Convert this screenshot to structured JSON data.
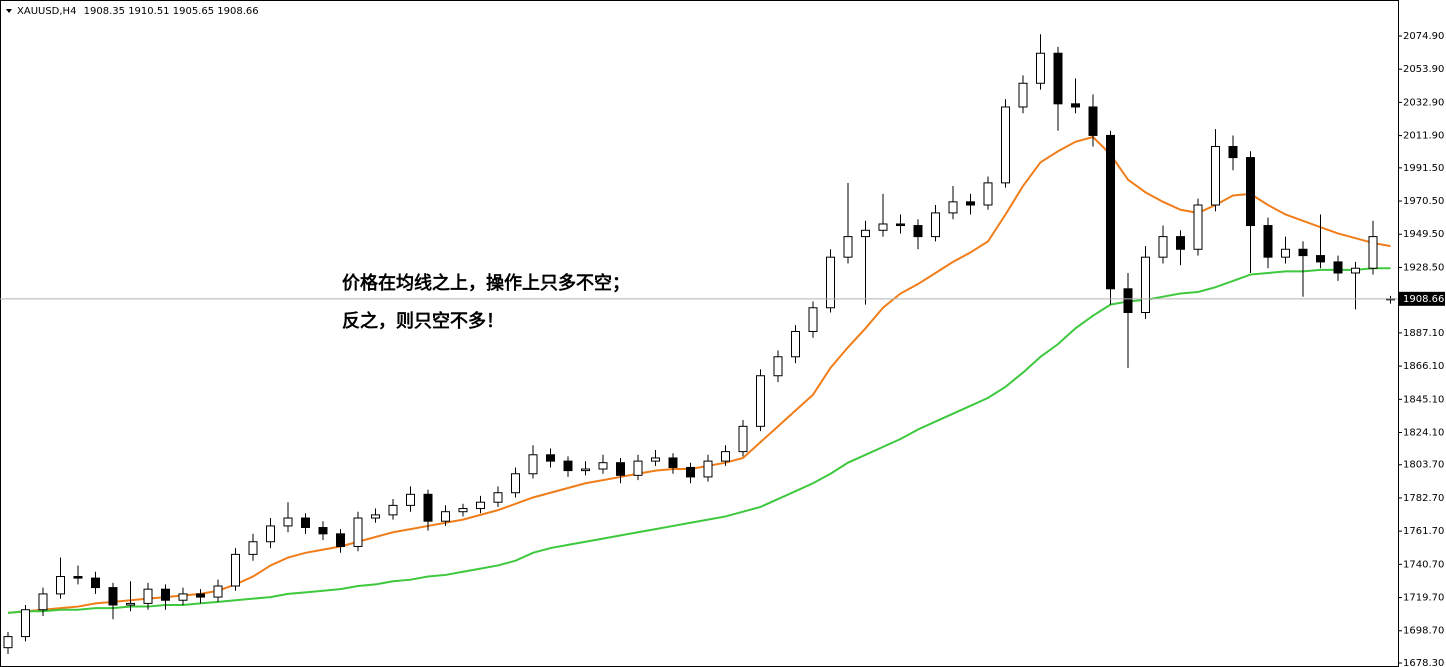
{
  "chart_data": {
    "type": "candlestick",
    "symbol": "XAUUSD,H4",
    "annotations": [
      "价格在均线之上，操作上只多不空；",
      "反之，则只空不多！"
    ],
    "ylim": [
      1675.77,
      2097.67
    ],
    "yticks": [
      {
        "value": 1678.3,
        "label": "1678.30"
      },
      {
        "value": 1698.7,
        "label": "1698.70"
      },
      {
        "value": 1719.7,
        "label": "1719.70"
      },
      {
        "value": 1740.7,
        "label": "1740.70"
      },
      {
        "value": 1761.7,
        "label": "1761.70"
      },
      {
        "value": 1782.7,
        "label": "1782.70"
      },
      {
        "value": 1803.7,
        "label": "1803.70"
      },
      {
        "value": 1824.1,
        "label": "1824.10"
      },
      {
        "value": 1845.1,
        "label": "1845.10"
      },
      {
        "value": 1866.1,
        "label": "1866.10"
      },
      {
        "value": 1887.1,
        "label": "1887.10"
      },
      {
        "value": 1928.5,
        "label": "1928.50"
      },
      {
        "value": 1949.5,
        "label": "1949.50"
      },
      {
        "value": 1970.5,
        "label": "1970.50"
      },
      {
        "value": 1991.5,
        "label": "1991.50"
      },
      {
        "value": 2011.9,
        "label": "2011.90"
      },
      {
        "value": 2032.9,
        "label": "2032.90"
      },
      {
        "value": 2053.9,
        "label": "2053.90"
      },
      {
        "value": 2074.9,
        "label": "2074.90"
      }
    ],
    "up_color": "#ffffff",
    "down_color": "#000000",
    "ohlc": [
      [
        1688,
        1698,
        1684,
        1695
      ],
      [
        1695,
        1715,
        1692,
        1712
      ],
      [
        1712,
        1726,
        1708,
        1722
      ],
      [
        1722,
        1745,
        1719,
        1733
      ],
      [
        1733,
        1740,
        1728,
        1732
      ],
      [
        1732,
        1736,
        1722,
        1726
      ],
      [
        1726,
        1729,
        1706,
        1715
      ],
      [
        1715,
        1730,
        1711,
        1716
      ],
      [
        1716,
        1729,
        1712,
        1725
      ],
      [
        1725,
        1728,
        1712,
        1718
      ],
      [
        1718,
        1726,
        1715,
        1722
      ],
      [
        1722,
        1725,
        1716,
        1720
      ],
      [
        1720,
        1731,
        1717,
        1727
      ],
      [
        1727,
        1751,
        1724,
        1747
      ],
      [
        1747,
        1760,
        1743,
        1755
      ],
      [
        1755,
        1770,
        1751,
        1765
      ],
      [
        1765,
        1780,
        1761,
        1770
      ],
      [
        1770,
        1773,
        1760,
        1764
      ],
      [
        1764,
        1768,
        1756,
        1760
      ],
      [
        1760,
        1763,
        1748,
        1752
      ],
      [
        1752,
        1774,
        1749,
        1770
      ],
      [
        1770,
        1776,
        1767,
        1772
      ],
      [
        1772,
        1782,
        1769,
        1778
      ],
      [
        1778,
        1790,
        1774,
        1785
      ],
      [
        1785,
        1788,
        1762,
        1768
      ],
      [
        1768,
        1778,
        1765,
        1774
      ],
      [
        1774,
        1779,
        1771,
        1776
      ],
      [
        1776,
        1784,
        1773,
        1780
      ],
      [
        1780,
        1790,
        1777,
        1786
      ],
      [
        1786,
        1802,
        1783,
        1798
      ],
      [
        1798,
        1816,
        1795,
        1810
      ],
      [
        1810,
        1814,
        1802,
        1806
      ],
      [
        1806,
        1809,
        1796,
        1800
      ],
      [
        1800,
        1806,
        1797,
        1801
      ],
      [
        1801,
        1810,
        1798,
        1805
      ],
      [
        1805,
        1808,
        1792,
        1797
      ],
      [
        1797,
        1810,
        1794,
        1806
      ],
      [
        1806,
        1813,
        1803,
        1808
      ],
      [
        1808,
        1811,
        1798,
        1802
      ],
      [
        1802,
        1805,
        1792,
        1796
      ],
      [
        1796,
        1810,
        1793,
        1806
      ],
      [
        1806,
        1816,
        1803,
        1812
      ],
      [
        1812,
        1832,
        1809,
        1828
      ],
      [
        1828,
        1864,
        1825,
        1860
      ],
      [
        1860,
        1876,
        1856,
        1872
      ],
      [
        1872,
        1892,
        1868,
        1888
      ],
      [
        1888,
        1907,
        1884,
        1903
      ],
      [
        1903,
        1940,
        1900,
        1935
      ],
      [
        1935,
        1982,
        1931,
        1948
      ],
      [
        1948,
        1958,
        1905,
        1952
      ],
      [
        1952,
        1975,
        1948,
        1956
      ],
      [
        1956,
        1962,
        1950,
        1955
      ],
      [
        1955,
        1959,
        1940,
        1948
      ],
      [
        1948,
        1968,
        1945,
        1963
      ],
      [
        1963,
        1980,
        1959,
        1970
      ],
      [
        1970,
        1975,
        1962,
        1968
      ],
      [
        1968,
        1986,
        1965,
        1982
      ],
      [
        1982,
        2035,
        1979,
        2030
      ],
      [
        2030,
        2050,
        2026,
        2045
      ],
      [
        2045,
        2076,
        2041,
        2064
      ],
      [
        2064,
        2068,
        2015,
        2032
      ],
      [
        2032,
        2048,
        2026,
        2030
      ],
      [
        2030,
        2038,
        2005,
        2012
      ],
      [
        2012,
        2015,
        1905,
        1915
      ],
      [
        1915,
        1925,
        1865,
        1900
      ],
      [
        1900,
        1942,
        1896,
        1935
      ],
      [
        1935,
        1955,
        1931,
        1948
      ],
      [
        1948,
        1952,
        1930,
        1940
      ],
      [
        1940,
        1972,
        1936,
        1968
      ],
      [
        1968,
        2016,
        1964,
        2005
      ],
      [
        2005,
        2012,
        1990,
        1998
      ],
      [
        1998,
        2002,
        1925,
        1955
      ],
      [
        1955,
        1960,
        1928,
        1935
      ],
      [
        1935,
        1948,
        1931,
        1940
      ],
      [
        1940,
        1945,
        1910,
        1936
      ],
      [
        1936,
        1962,
        1928,
        1932
      ],
      [
        1932,
        1936,
        1920,
        1925
      ],
      [
        1925,
        1932,
        1902,
        1928
      ],
      [
        1928,
        1958,
        1924,
        1948
      ],
      [
        1908.35,
        1910.51,
        1905.65,
        1908.66
      ]
    ],
    "ma": [
      {
        "color": "#f07d1a",
        "values": [
          1710,
          1711,
          1712,
          1713,
          1714,
          1716,
          1717,
          1718,
          1719,
          1720,
          1721,
          1722,
          1724,
          1728,
          1733,
          1740,
          1745,
          1748,
          1750,
          1752,
          1755,
          1758,
          1761,
          1763,
          1765,
          1767,
          1769,
          1772,
          1775,
          1779,
          1783,
          1786,
          1789,
          1792,
          1794,
          1796,
          1798,
          1800,
          1801,
          1801,
          1803,
          1805,
          1808,
          1818,
          1828,
          1838,
          1848,
          1865,
          1878,
          1890,
          1903,
          1912,
          1918,
          1925,
          1932,
          1938,
          1945,
          1962,
          1980,
          1995,
          2002,
          2008,
          2011,
          2000,
          1984,
          1976,
          1970,
          1965,
          1963,
          1968,
          1974,
          1975,
          1968,
          1962,
          1958,
          1954,
          1950,
          1947,
          1944,
          1942
        ]
      },
      {
        "color": "#3ec83e",
        "values": [
          1710,
          1711,
          1711,
          1712,
          1712,
          1713,
          1713,
          1714,
          1714,
          1715,
          1715,
          1716,
          1717,
          1718,
          1719,
          1720,
          1722,
          1723,
          1724,
          1725,
          1727,
          1728,
          1730,
          1731,
          1733,
          1734,
          1736,
          1738,
          1740,
          1743,
          1748,
          1751,
          1753,
          1755,
          1757,
          1759,
          1761,
          1763,
          1765,
          1767,
          1769,
          1771,
          1774,
          1777,
          1782,
          1787,
          1792,
          1798,
          1805,
          1810,
          1815,
          1820,
          1826,
          1831,
          1836,
          1841,
          1846,
          1853,
          1862,
          1872,
          1880,
          1890,
          1898,
          1905,
          1907,
          1908,
          1910,
          1912,
          1913,
          1916,
          1920,
          1924,
          1925,
          1926,
          1926,
          1927,
          1927,
          1927,
          1928,
          1928
        ]
      }
    ]
  }
}
